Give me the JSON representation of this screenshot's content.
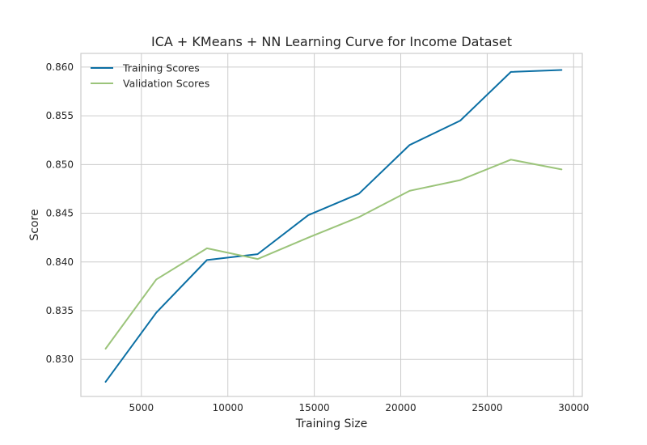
{
  "chart_data": {
    "type": "line",
    "title": "ICA + KMeans + NN Learning Curve for Income Dataset",
    "xlabel": "Training Size",
    "ylabel": "Score",
    "xlim": [
      1500,
      30500
    ],
    "ylim": [
      0.8262,
      0.8614
    ],
    "xticks": [
      5000,
      10000,
      15000,
      20000,
      25000,
      30000
    ],
    "yticks": [
      0.83,
      0.835,
      0.84,
      0.845,
      0.85,
      0.855,
      0.86
    ],
    "xtick_labels": [
      "5000",
      "10000",
      "15000",
      "20000",
      "25000",
      "30000"
    ],
    "ytick_labels": [
      "0.830",
      "0.835",
      "0.840",
      "0.845",
      "0.850",
      "0.855",
      "0.860"
    ],
    "grid": true,
    "legend_position": "top-left",
    "x": [
      2930,
      5860,
      8790,
      11720,
      14650,
      17580,
      20510,
      23440,
      26370,
      29300
    ],
    "series": [
      {
        "name": "Training Scores",
        "color": "#0b6fa4",
        "values": [
          0.8277,
          0.8348,
          0.8402,
          0.8408,
          0.8448,
          0.847,
          0.852,
          0.8545,
          0.8595,
          0.8597
        ]
      },
      {
        "name": "Validation Scores",
        "color": "#9bc47a",
        "values": [
          0.8311,
          0.8382,
          0.8414,
          0.8403,
          0.8425,
          0.8446,
          0.8473,
          0.8484,
          0.8505,
          0.8495
        ]
      }
    ]
  }
}
